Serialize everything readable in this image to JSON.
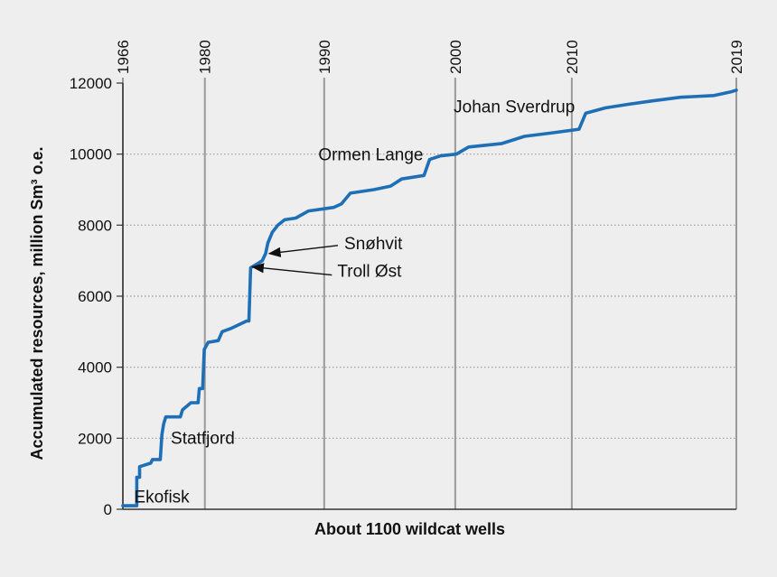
{
  "chart_data": {
    "type": "line",
    "title": "",
    "xlabel": "About 1100 wildcat wells",
    "ylabel": "Accumulated resources, million Sm³ o.e.",
    "ylim": [
      0,
      12000
    ],
    "xlim": [
      0,
      1100
    ],
    "grid": true,
    "y_ticks": [
      {
        "value": 0,
        "label": "0"
      },
      {
        "value": 2000,
        "label": "2000"
      },
      {
        "value": 4000,
        "label": "4000"
      },
      {
        "value": 6000,
        "label": "6000"
      },
      {
        "value": 8000,
        "label": "8000"
      },
      {
        "value": 10000,
        "label": "10000"
      },
      {
        "value": 12000,
        "label": "12000"
      }
    ],
    "year_ticks": [
      {
        "well": 0,
        "label": "1966"
      },
      {
        "well": 147,
        "label": "1980"
      },
      {
        "well": 361,
        "label": "1990"
      },
      {
        "well": 596,
        "label": "2000"
      },
      {
        "well": 805,
        "label": "2010"
      },
      {
        "well": 1100,
        "label": "2019"
      }
    ],
    "series": [
      {
        "name": "Accumulated resources",
        "color": "#1f6fb7",
        "points": [
          [
            0,
            100
          ],
          [
            25,
            100
          ],
          [
            25,
            900
          ],
          [
            30,
            900
          ],
          [
            30,
            1200
          ],
          [
            50,
            1300
          ],
          [
            53,
            1400
          ],
          [
            67,
            1400
          ],
          [
            70,
            2100
          ],
          [
            73,
            2400
          ],
          [
            77,
            2600
          ],
          [
            103,
            2600
          ],
          [
            107,
            2800
          ],
          [
            122,
            3000
          ],
          [
            135,
            3000
          ],
          [
            137,
            3400
          ],
          [
            143,
            3400
          ],
          [
            146,
            4500
          ],
          [
            153,
            4700
          ],
          [
            171,
            4750
          ],
          [
            178,
            5000
          ],
          [
            195,
            5100
          ],
          [
            222,
            5300
          ],
          [
            226,
            5300
          ],
          [
            229,
            6800
          ],
          [
            240,
            6900
          ],
          [
            250,
            7000
          ],
          [
            256,
            7200
          ],
          [
            260,
            7500
          ],
          [
            268,
            7800
          ],
          [
            278,
            8000
          ],
          [
            290,
            8150
          ],
          [
            310,
            8200
          ],
          [
            333,
            8400
          ],
          [
            378,
            8500
          ],
          [
            392,
            8600
          ],
          [
            408,
            8900
          ],
          [
            450,
            9000
          ],
          [
            480,
            9100
          ],
          [
            500,
            9300
          ],
          [
            540,
            9400
          ],
          [
            550,
            9850
          ],
          [
            570,
            9950
          ],
          [
            598,
            10000
          ],
          [
            620,
            10200
          ],
          [
            680,
            10300
          ],
          [
            720,
            10500
          ],
          [
            770,
            10600
          ],
          [
            818,
            10700
          ],
          [
            830,
            11150
          ],
          [
            865,
            11300
          ],
          [
            905,
            11400
          ],
          [
            950,
            11500
          ],
          [
            1000,
            11600
          ],
          [
            1060,
            11650
          ],
          [
            1090,
            11750
          ],
          [
            1100,
            11800
          ]
        ]
      }
    ],
    "annotations": [
      {
        "text": "Ekofisk",
        "well": 25,
        "value": 900
      },
      {
        "text": "Statfjord",
        "well": 73,
        "value": 2100
      },
      {
        "text": "Troll Øst",
        "well": 229,
        "value": 6800,
        "arrow": true
      },
      {
        "text": "Snøhvit",
        "well": 256,
        "value": 7200,
        "arrow": true
      },
      {
        "text": "Ormen Lange",
        "well": 550,
        "value": 9900
      },
      {
        "text": "Johan Sverdrup",
        "well": 830,
        "value": 11150
      }
    ]
  }
}
